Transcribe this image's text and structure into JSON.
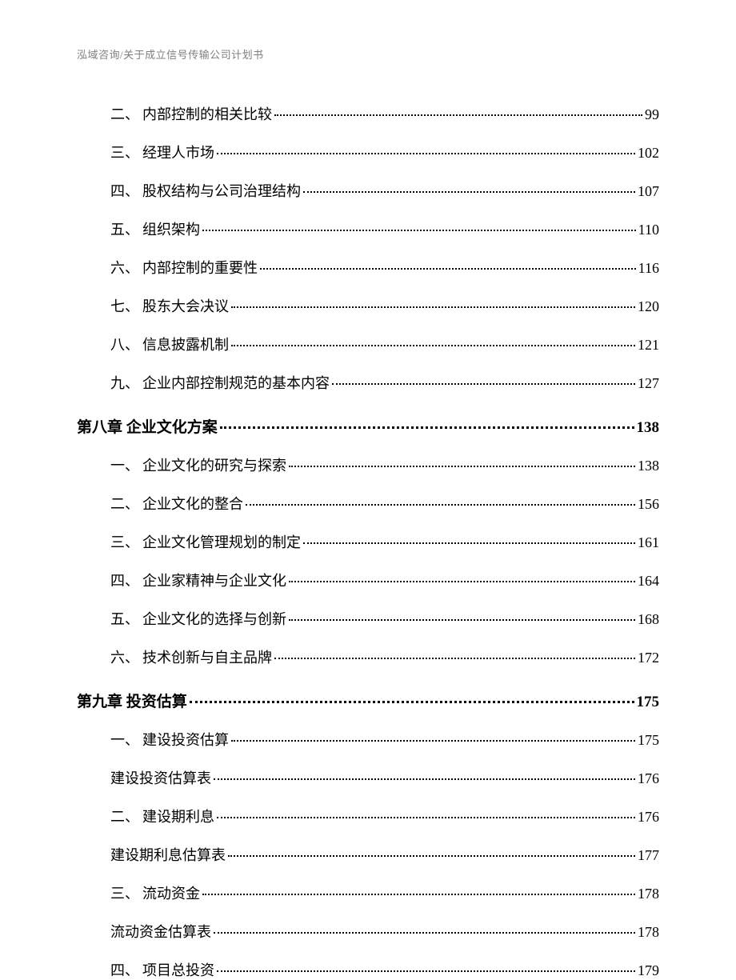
{
  "header_text": "泓域咨询/关于成立信号传输公司计划书",
  "page_bg": "#ffffff",
  "header_color": "#808080",
  "text_color": "#000000",
  "item_fontsize": 18,
  "section_fontsize": 19,
  "header_fontsize": 13,
  "entries": [
    {
      "type": "item",
      "num": "二、",
      "label": "内部控制的相关比较",
      "page": "99"
    },
    {
      "type": "item",
      "num": "三、",
      "label": "经理人市场",
      "page": "102"
    },
    {
      "type": "item",
      "num": "四、",
      "label": "股权结构与公司治理结构",
      "page": "107"
    },
    {
      "type": "item",
      "num": "五、",
      "label": "组织架构",
      "page": "110"
    },
    {
      "type": "item",
      "num": "六、",
      "label": "内部控制的重要性",
      "page": "116"
    },
    {
      "type": "item",
      "num": "七、",
      "label": "股东大会决议",
      "page": "120"
    },
    {
      "type": "item",
      "num": "八、",
      "label": "信息披露机制",
      "page": "121"
    },
    {
      "type": "item",
      "num": "九、",
      "label": "企业内部控制规范的基本内容",
      "page": "127"
    },
    {
      "type": "section",
      "label": "第八章 企业文化方案",
      "page": "138"
    },
    {
      "type": "item",
      "num": "一、",
      "label": "企业文化的研究与探索",
      "page": "138"
    },
    {
      "type": "item",
      "num": "二、",
      "label": "企业文化的整合",
      "page": "156"
    },
    {
      "type": "item",
      "num": "三、",
      "label": "企业文化管理规划的制定",
      "page": "161"
    },
    {
      "type": "item",
      "num": "四、",
      "label": "企业家精神与企业文化",
      "page": "164"
    },
    {
      "type": "item",
      "num": "五、",
      "label": "企业文化的选择与创新",
      "page": "168"
    },
    {
      "type": "item",
      "num": "六、",
      "label": "技术创新与自主品牌",
      "page": "172"
    },
    {
      "type": "section",
      "label": "第九章 投资估算",
      "page": "175"
    },
    {
      "type": "item",
      "num": "一、",
      "label": "建设投资估算",
      "page": "175"
    },
    {
      "type": "subitem",
      "label": "建设投资估算表",
      "page": "176"
    },
    {
      "type": "item",
      "num": "二、",
      "label": "建设期利息",
      "page": "176"
    },
    {
      "type": "subitem",
      "label": "建设期利息估算表",
      "page": "177"
    },
    {
      "type": "item",
      "num": "三、",
      "label": "流动资金",
      "page": "178"
    },
    {
      "type": "subitem",
      "label": "流动资金估算表",
      "page": "178"
    },
    {
      "type": "item",
      "num": "四、",
      "label": "项目总投资",
      "page": "179"
    }
  ]
}
